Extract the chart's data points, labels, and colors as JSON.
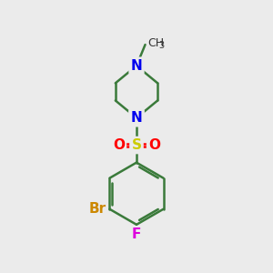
{
  "bg_color": "#ebebeb",
  "bond_color": "#3a7a3a",
  "bond_lw": 1.8,
  "n_color": "#0000ee",
  "o_color": "#ff0000",
  "s_color": "#cccc00",
  "br_color": "#cc8800",
  "f_color": "#dd00dd",
  "methyl_color": "#333333",
  "font_size_atom": 11,
  "font_size_methyl": 9,
  "xlim": [
    0,
    10
  ],
  "ylim": [
    0,
    11
  ]
}
